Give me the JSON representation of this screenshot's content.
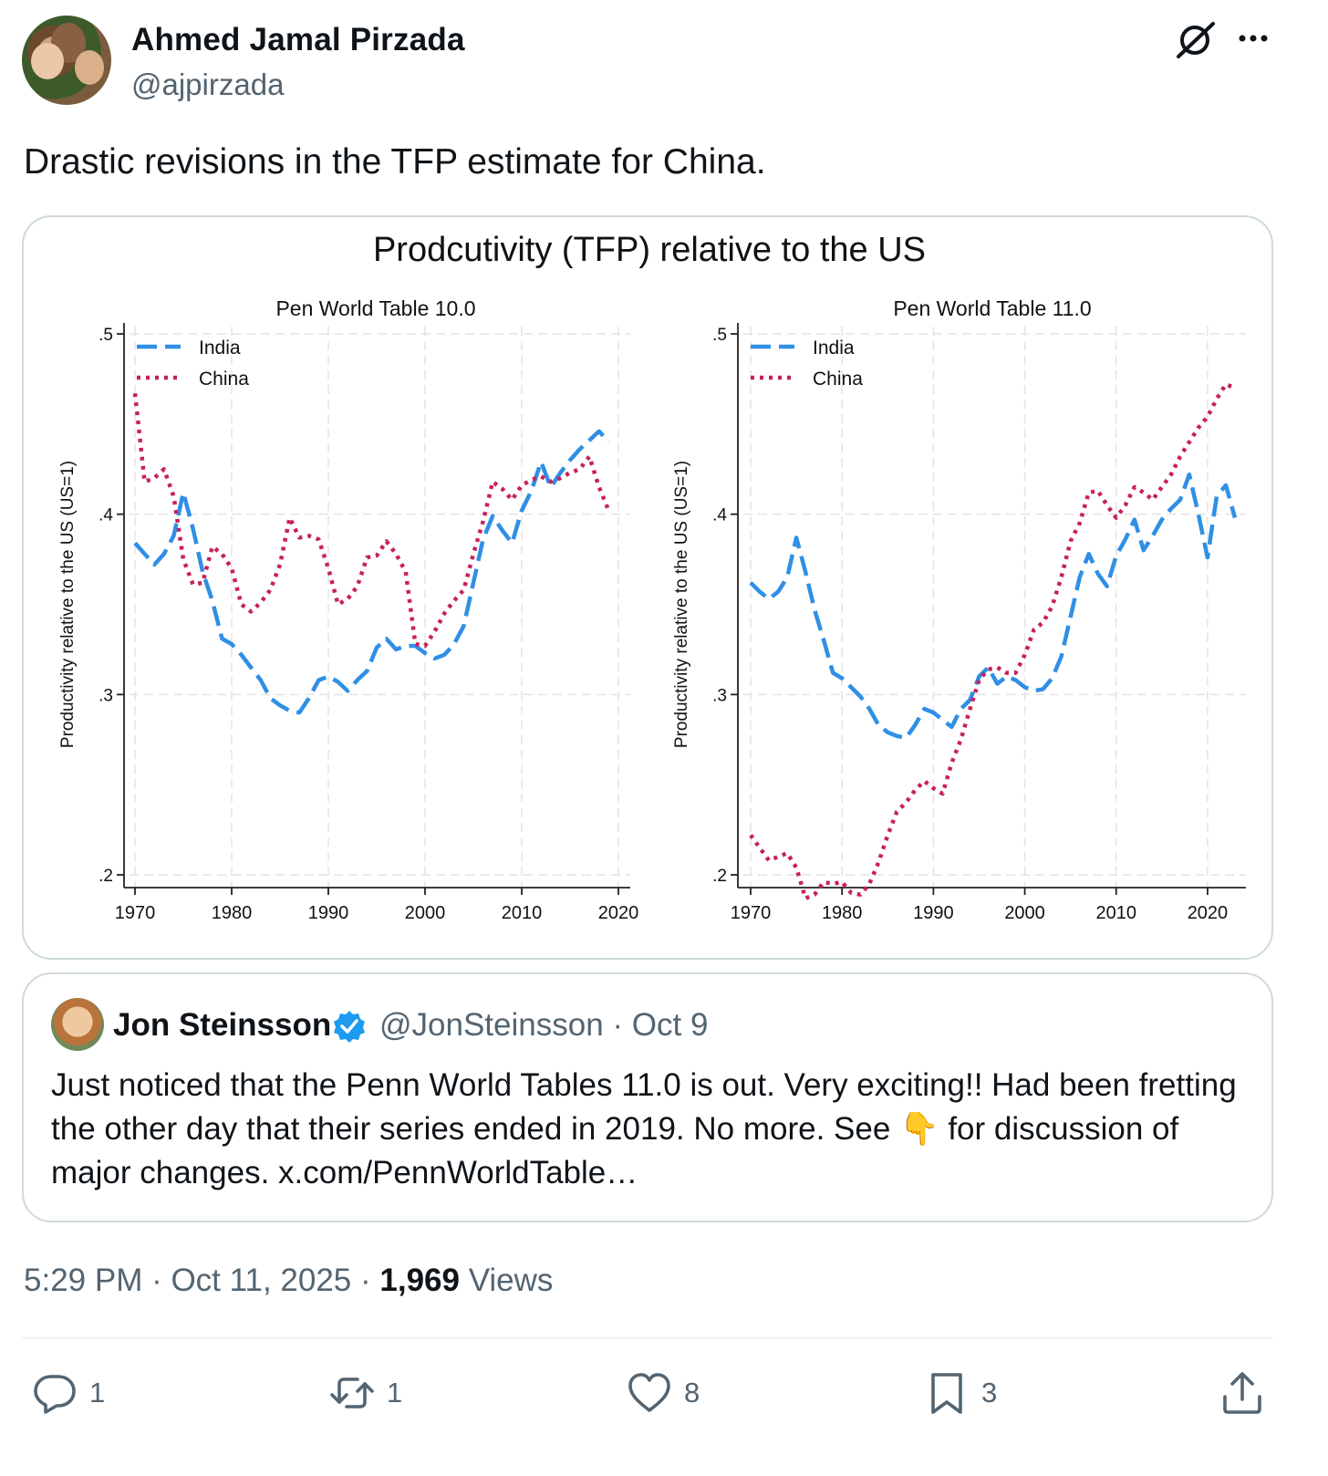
{
  "post": {
    "author_name": "Ahmed Jamal Pirzada",
    "author_handle": "@ajpirzada",
    "text": "Drastic revisions in the TFP estimate for China.",
    "timestamp": "5:29 PM · Oct 11, 2025 · ",
    "views_count": "1,969",
    "views_label": " Views"
  },
  "media": {
    "title": "Prodcutivity (TFP) relative to the US",
    "legend_india": "India",
    "legend_china": "China",
    "y_axis_label": "Productivity relative to the US (US=1)"
  },
  "chart_data": [
    {
      "type": "line",
      "title": "Pen World Table 10.0",
      "xlabel": "",
      "ylabel": "Productivity relative to the US (US=1)",
      "xlim": [
        1970,
        2020
      ],
      "ylim": [
        0.2,
        0.5
      ],
      "x_ticks": [
        "1970",
        "1980",
        "1990",
        "2000",
        "2010",
        "2020"
      ],
      "y_ticks": [
        ".2",
        ".3",
        ".4",
        ".5"
      ],
      "y_tick_values": [
        0.2,
        0.3,
        0.4,
        0.5
      ],
      "x": [
        1970,
        1971,
        1972,
        1973,
        1974,
        1975,
        1976,
        1977,
        1978,
        1979,
        1980,
        1981,
        1982,
        1983,
        1984,
        1985,
        1986,
        1987,
        1988,
        1989,
        1990,
        1991,
        1992,
        1993,
        1994,
        1995,
        1996,
        1997,
        1998,
        1999,
        2000,
        2001,
        2002,
        2003,
        2004,
        2005,
        2006,
        2007,
        2008,
        2009,
        2010,
        2011,
        2012,
        2013,
        2014,
        2015,
        2016,
        2017,
        2018,
        2019
      ],
      "series": [
        {
          "name": "India",
          "color": "#2f8fe6",
          "dash": "dashed",
          "values": [
            0.384,
            0.378,
            0.372,
            0.378,
            0.388,
            0.412,
            0.392,
            0.368,
            0.352,
            0.331,
            0.328,
            0.322,
            0.315,
            0.308,
            0.298,
            0.294,
            0.291,
            0.29,
            0.298,
            0.308,
            0.31,
            0.307,
            0.302,
            0.308,
            0.313,
            0.326,
            0.331,
            0.325,
            0.327,
            0.327,
            0.323,
            0.32,
            0.322,
            0.328,
            0.338,
            0.362,
            0.386,
            0.399,
            0.391,
            0.384,
            0.402,
            0.413,
            0.429,
            0.415,
            0.423,
            0.43,
            0.436,
            0.441,
            0.446,
            0.44
          ]
        },
        {
          "name": "China",
          "color": "#c8215a",
          "dash": "dotted",
          "values": [
            0.467,
            0.418,
            0.42,
            0.425,
            0.41,
            0.375,
            0.361,
            0.362,
            0.382,
            0.378,
            0.37,
            0.35,
            0.346,
            0.351,
            0.358,
            0.372,
            0.398,
            0.387,
            0.388,
            0.386,
            0.37,
            0.35,
            0.353,
            0.36,
            0.376,
            0.377,
            0.385,
            0.378,
            0.368,
            0.328,
            0.327,
            0.335,
            0.345,
            0.352,
            0.358,
            0.378,
            0.396,
            0.418,
            0.414,
            0.408,
            0.416,
            0.419,
            0.421,
            0.418,
            0.42,
            0.423,
            0.425,
            0.432,
            0.415,
            0.402
          ]
        }
      ]
    },
    {
      "type": "line",
      "title": "Pen World Table 11.0",
      "xlabel": "",
      "ylabel": "Productivity relative to the US (US=1)",
      "xlim": [
        1970,
        2023
      ],
      "ylim": [
        0.2,
        0.5
      ],
      "x_ticks": [
        "1970",
        "1980",
        "1990",
        "2000",
        "2010",
        "2020"
      ],
      "y_ticks": [
        ".2",
        ".3",
        ".4",
        ".5"
      ],
      "y_tick_values": [
        0.2,
        0.3,
        0.4,
        0.5
      ],
      "x": [
        1970,
        1971,
        1972,
        1973,
        1974,
        1975,
        1976,
        1977,
        1978,
        1979,
        1980,
        1981,
        1982,
        1983,
        1984,
        1985,
        1986,
        1987,
        1988,
        1989,
        1990,
        1991,
        1992,
        1993,
        1994,
        1995,
        1996,
        1997,
        1998,
        1999,
        2000,
        2001,
        2002,
        2003,
        2004,
        2005,
        2006,
        2007,
        2008,
        2009,
        2010,
        2011,
        2012,
        2013,
        2014,
        2015,
        2016,
        2017,
        2018,
        2019,
        2020,
        2021,
        2022,
        2023
      ],
      "series": [
        {
          "name": "India",
          "color": "#2f8fe6",
          "dash": "dashed",
          "values": [
            0.362,
            0.357,
            0.353,
            0.357,
            0.365,
            0.387,
            0.368,
            0.347,
            0.33,
            0.312,
            0.309,
            0.304,
            0.299,
            0.292,
            0.283,
            0.279,
            0.277,
            0.276,
            0.283,
            0.292,
            0.29,
            0.286,
            0.282,
            0.292,
            0.297,
            0.31,
            0.315,
            0.306,
            0.31,
            0.308,
            0.304,
            0.302,
            0.303,
            0.309,
            0.321,
            0.343,
            0.365,
            0.378,
            0.367,
            0.36,
            0.377,
            0.386,
            0.397,
            0.38,
            0.388,
            0.397,
            0.403,
            0.408,
            0.422,
            0.4,
            0.376,
            0.41,
            0.416,
            0.398
          ]
        },
        {
          "name": "China",
          "color": "#c8215a",
          "dash": "dotted",
          "values": [
            0.222,
            0.215,
            0.208,
            0.21,
            0.212,
            0.204,
            0.187,
            0.189,
            0.196,
            0.195,
            0.196,
            0.19,
            0.189,
            0.195,
            0.207,
            0.222,
            0.235,
            0.24,
            0.247,
            0.252,
            0.248,
            0.245,
            0.262,
            0.275,
            0.292,
            0.308,
            0.314,
            0.315,
            0.312,
            0.312,
            0.322,
            0.336,
            0.34,
            0.349,
            0.365,
            0.385,
            0.395,
            0.412,
            0.413,
            0.405,
            0.398,
            0.405,
            0.415,
            0.412,
            0.408,
            0.415,
            0.422,
            0.432,
            0.44,
            0.448,
            0.454,
            0.464,
            0.472,
            0.47
          ]
        }
      ]
    }
  ],
  "quote": {
    "author_name": "Jon Steinsson",
    "meta": "@JonSteinsson · Oct 9",
    "text_before_emoji": "Just noticed that the Penn World Tables 11.0 is out. Very exciting!! Had been fretting the other day that their series ended in 2019. No more. See ",
    "emoji": "👇",
    "text_after_emoji": " for discussion of major changes. x.com/PennWorldTable…"
  },
  "actions": {
    "replies": "1",
    "reposts": "1",
    "likes": "8",
    "bookmarks": "3"
  },
  "colors": {
    "india": "#2f8fe6",
    "china": "#c8215a",
    "secondary_text": "#536471",
    "verified": "#1d9bf0"
  },
  "icons": [
    "grok-icon",
    "more-icon",
    "verified-badge-icon",
    "reply-icon",
    "repost-icon",
    "like-icon",
    "bookmark-icon",
    "share-icon"
  ]
}
